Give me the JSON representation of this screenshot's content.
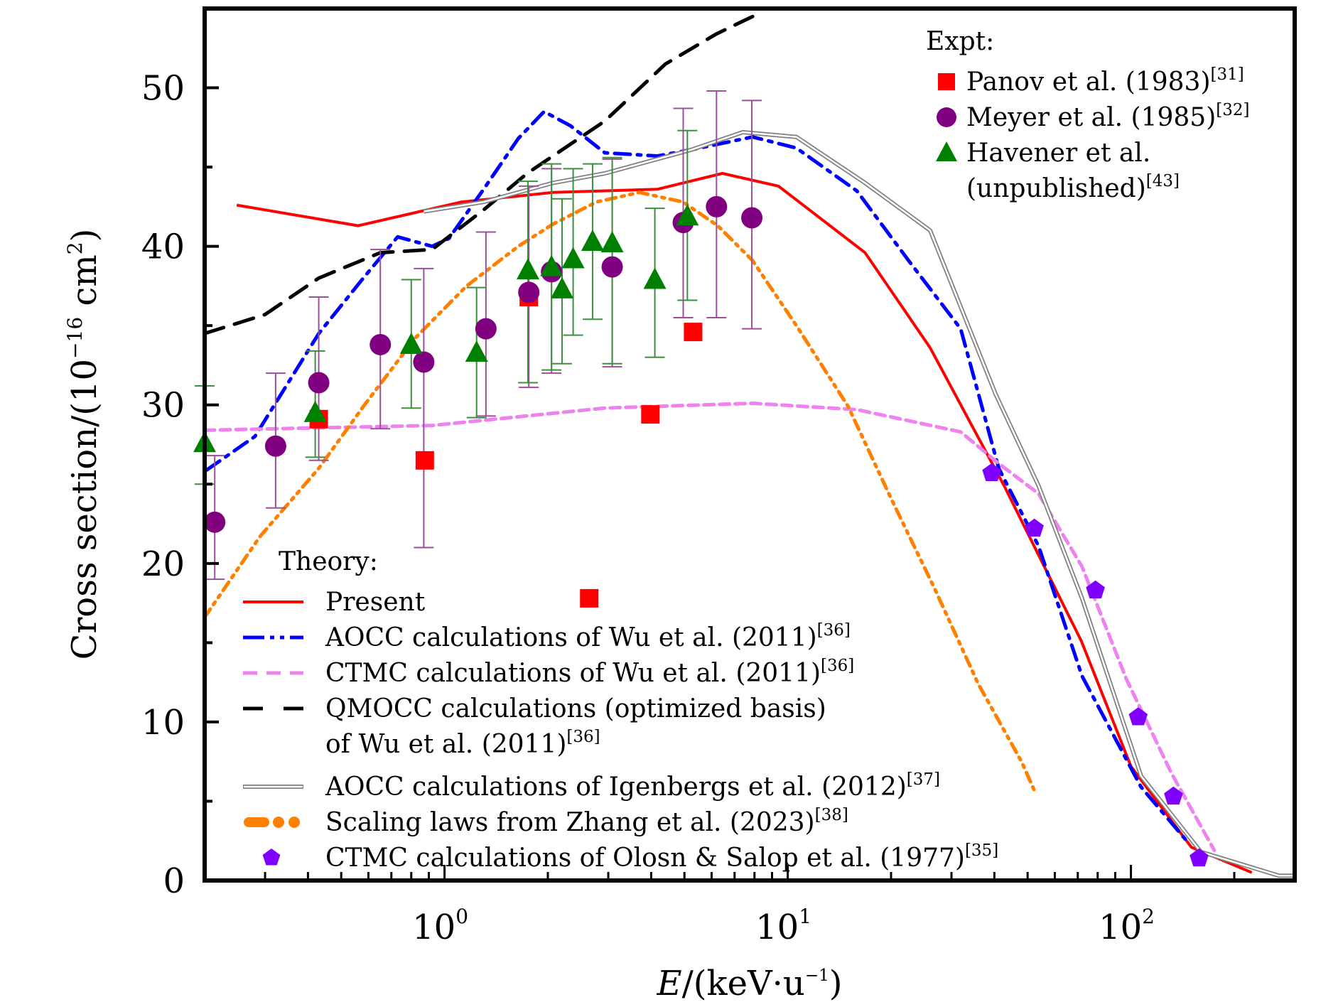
{
  "chart_data": {
    "type": "scatter",
    "title": "",
    "xlabel": "E/(keV·u⁻¹)",
    "xlabel_parts": {
      "var": "E",
      "unit": "/(keV·u",
      "exp": "−1",
      "close": ")"
    },
    "ylabel": "Cross section/(10⁻¹⁶ cm²)",
    "ylabel_parts": {
      "pre": "Cross section/(10",
      "exp": "−16",
      "mid": " cm",
      "exp2": "2",
      "close": ")"
    },
    "xscale": "log",
    "xlim": [
      0.2,
      300
    ],
    "ylim": [
      0,
      55
    ],
    "xticks": [
      1,
      10,
      100
    ],
    "xtick_labels": [
      {
        "base": "10",
        "exp": "0"
      },
      {
        "base": "10",
        "exp": "1"
      },
      {
        "base": "10",
        "exp": "2"
      }
    ],
    "yticks": [
      0,
      10,
      20,
      30,
      40,
      50
    ],
    "ytick_labels": [
      "0",
      "10",
      "20",
      "30",
      "40",
      "50"
    ],
    "yminor": [
      5,
      15,
      25,
      35,
      45
    ],
    "grid": false,
    "legend_expt": {
      "title": "Expt:",
      "placement": "top-right",
      "entries": [
        {
          "series": "panov",
          "lines": [
            "Panov et al. (1983)"
          ],
          "ref": "[31]"
        },
        {
          "series": "meyer",
          "lines": [
            "Meyer et al. (1985)"
          ],
          "ref": "[32]"
        },
        {
          "series": "havener",
          "lines": [
            "Havener et al.",
            "(unpublished)"
          ],
          "ref": "[43]"
        }
      ]
    },
    "legend_theory": {
      "title": "Theory:",
      "placement": "bottom-left",
      "entries": [
        {
          "series": "present",
          "lines": [
            "Present"
          ],
          "ref": ""
        },
        {
          "series": "aocc_wu",
          "lines": [
            "AOCC calculations of Wu et al. (2011)"
          ],
          "ref": "[36]"
        },
        {
          "series": "ctmc_wu",
          "lines": [
            "CTMC calculations of Wu et al. (2011)"
          ],
          "ref": "[36]"
        },
        {
          "series": "qmocc_wu",
          "lines": [
            "QMOCC calculations (optimized basis)",
            "of Wu et al. (2011)"
          ],
          "ref": "[36]"
        },
        {
          "series": "aocc_igenbergs",
          "lines": [
            "AOCC calculations of Igenbergs et al. (2012)"
          ],
          "ref": "[37]"
        },
        {
          "series": "scaling_zhang",
          "lines": [
            "Scaling laws from Zhang et al. (2023)"
          ],
          "ref": "[38]"
        },
        {
          "series": "ctmc_olson",
          "lines": [
            "CTMC calculations of Olosn & Salop et al. (1977)"
          ],
          "ref": "[35]"
        }
      ]
    },
    "series": [
      {
        "id": "panov",
        "name": "Panov et al. (1983)",
        "kind": "marker",
        "marker": "square",
        "color": "#ff0000",
        "x": [
          0.43,
          0.876,
          1.76,
          2.64,
          3.98,
          5.3
        ],
        "y": [
          29.1,
          26.5,
          36.8,
          17.8,
          29.4,
          34.6
        ]
      },
      {
        "id": "meyer",
        "name": "Meyer et al. (1985)",
        "kind": "marker",
        "marker": "circle",
        "color": "#800080",
        "errcolor": "#9b4f9b",
        "x": [
          0.214,
          0.322,
          0.43,
          0.65,
          0.87,
          1.32,
          1.76,
          2.05,
          3.08,
          4.96,
          6.2,
          7.86
        ],
        "y": [
          22.6,
          27.4,
          31.4,
          33.8,
          32.7,
          34.8,
          37.1,
          38.4,
          38.7,
          41.5,
          42.5,
          41.8
        ],
        "ylow": [
          19.0,
          23.5,
          26.5,
          28.5,
          21.0,
          29.3,
          31.1,
          32.0,
          32.4,
          35.5,
          35.5,
          34.8
        ],
        "yhigh": [
          26.8,
          32.0,
          36.8,
          39.8,
          38.6,
          40.9,
          43.8,
          44.9,
          45.5,
          48.7,
          49.8,
          49.2
        ]
      },
      {
        "id": "havener",
        "name": "Havener et al. (unpublished)",
        "kind": "marker",
        "marker": "triangle",
        "color": "#008000",
        "errcolor": "#3d8f3d",
        "x": [
          0.2,
          0.42,
          0.8,
          1.24,
          1.75,
          2.05,
          2.2,
          2.37,
          2.7,
          3.08,
          4.1,
          5.1
        ],
        "y": [
          27.6,
          29.5,
          33.8,
          33.3,
          38.5,
          38.7,
          37.3,
          39.2,
          40.3,
          40.2,
          37.9,
          41.9
        ],
        "ylow": [
          25.0,
          26.7,
          29.8,
          29.2,
          31.4,
          32.2,
          32.6,
          34.4,
          35.4,
          32.6,
          33.0,
          36.6
        ],
        "yhigh": [
          31.2,
          33.4,
          37.9,
          37.4,
          44.1,
          45.2,
          43.0,
          44.9,
          45.2,
          45.6,
          42.4,
          47.3
        ]
      },
      {
        "id": "present",
        "name": "Present",
        "kind": "line",
        "style": "solid",
        "color": "#ff0000",
        "x": [
          0.248,
          0.56,
          1.12,
          2.07,
          4.17,
          6.45,
          9.4,
          16.8,
          26,
          42.7,
          71.7,
          100,
          150,
          225
        ],
        "y": [
          42.6,
          41.3,
          42.8,
          43.4,
          43.6,
          44.6,
          43.8,
          39.6,
          33.6,
          24.9,
          15.1,
          7.2,
          2.1,
          0.5
        ]
      },
      {
        "id": "aocc_wu",
        "name": "AOCC calculations of Wu et al. (2011)",
        "kind": "line",
        "style": "dashdot",
        "color": "#0000ff",
        "x": [
          0.203,
          0.28,
          0.43,
          0.58,
          0.73,
          0.92,
          1.03,
          1.3,
          1.64,
          1.95,
          2.33,
          2.93,
          4.17,
          5.25,
          7.9,
          10.6,
          15.9,
          22.5,
          31.9,
          41.2,
          53.8,
          72,
          107,
          148
        ],
        "y": [
          25.9,
          28.0,
          34.5,
          38.0,
          40.6,
          40.0,
          40.5,
          43.6,
          46.8,
          48.5,
          47.6,
          45.9,
          45.7,
          46.1,
          46.9,
          46.2,
          43.5,
          39.1,
          34.8,
          26.0,
          21.1,
          12.9,
          5.9,
          2.3
        ]
      },
      {
        "id": "ctmc_wu",
        "name": "CTMC calculations of Wu et al. (2011)",
        "kind": "line",
        "style": "dashed",
        "color": "#ee82ee",
        "x": [
          0.2,
          0.92,
          2.93,
          7.9,
          15.9,
          31.9,
          41.2,
          53.8,
          72,
          97,
          131,
          175
        ],
        "y": [
          28.4,
          28.7,
          29.8,
          30.1,
          29.7,
          28.3,
          26.3,
          24.4,
          19.8,
          12.7,
          6.8,
          1.9
        ]
      },
      {
        "id": "qmocc_wu",
        "name": "QMOCC calculations (optimized basis) of Wu et al. (2011)",
        "kind": "line",
        "style": "longdash",
        "color": "#000000",
        "x": [
          0.2,
          0.3,
          0.43,
          0.65,
          0.92,
          1.3,
          1.74,
          2.93,
          4.4,
          6.2,
          7.9
        ],
        "y": [
          34.5,
          35.7,
          38.0,
          39.6,
          39.8,
          42.3,
          44.6,
          47.9,
          51.5,
          53.4,
          54.5
        ]
      },
      {
        "id": "aocc_igenbergs",
        "name": "AOCC calculations of Igenbergs et al. (2012)",
        "kind": "line",
        "style": "double",
        "color": "#808080",
        "x": [
          0.87,
          1.3,
          2.07,
          2.93,
          5.25,
          7.4,
          10.6,
          16.8,
          26,
          40.3,
          53.8,
          72,
          107,
          160,
          270,
          300
        ],
        "y": [
          42.2,
          42.8,
          44.0,
          44.6,
          46.1,
          47.2,
          46.9,
          44.0,
          41.0,
          30.7,
          24.9,
          17.8,
          6.6,
          1.8,
          0.3,
          0.3
        ]
      },
      {
        "id": "scaling_zhang",
        "name": "Scaling laws from Zhang et al. (2023)",
        "kind": "line",
        "style": "dashdotdot",
        "color": "#ff8000",
        "x": [
          0.2,
          0.29,
          0.43,
          0.58,
          0.82,
          1.16,
          1.64,
          2.07,
          2.77,
          3.7,
          4.95,
          6.25,
          7.9,
          10.6,
          15.0,
          20.0,
          26.8,
          35.9,
          48,
          52.5
        ],
        "y": [
          16.6,
          21.7,
          26.0,
          29.9,
          34.2,
          37.5,
          40.0,
          41.4,
          42.8,
          43.4,
          42.8,
          41.3,
          39.1,
          35.0,
          29.9,
          24.1,
          18.4,
          12.4,
          7.5,
          5.6
        ]
      },
      {
        "id": "ctmc_olson",
        "name": "CTMC calculations of Olosn & Salop et al. (1977)",
        "kind": "marker",
        "marker": "pentagon",
        "color": "#8000ff",
        "x": [
          39.3,
          52.3,
          78.8,
          105,
          133,
          158
        ],
        "y": [
          25.7,
          22.2,
          18.3,
          10.3,
          5.3,
          1.4
        ]
      }
    ]
  }
}
